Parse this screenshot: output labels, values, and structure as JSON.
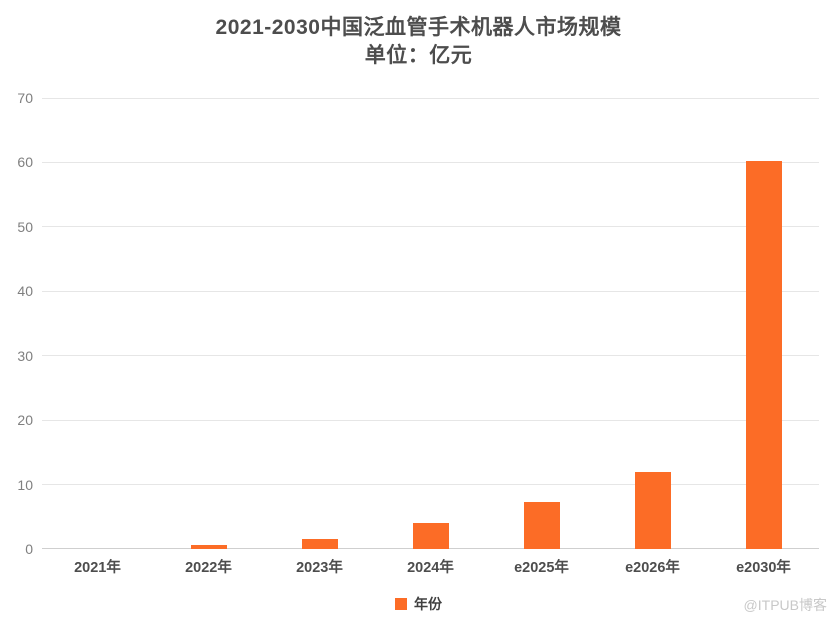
{
  "chart": {
    "watermark": "@ITPUB博客"
  },
  "chart_data": {
    "type": "bar",
    "title": "2021-2030中国泛血管手术机器人市场规模",
    "subtitle": "单位：亿元",
    "unit": "亿元",
    "categories": [
      "2021年",
      "2022年",
      "2023年",
      "2024年",
      "e2025年",
      "e2026年",
      "e2030年"
    ],
    "values": [
      0,
      0.6,
      1.5,
      4,
      7.3,
      11.9,
      60.2
    ],
    "xlabel": "",
    "ylabel": "",
    "ylim": [
      0,
      70
    ],
    "yticks": [
      0,
      10,
      20,
      30,
      40,
      50,
      60,
      70
    ],
    "grid": true,
    "bar_color": "#fc6c26",
    "legend_label": "年份",
    "legend_position": "bottom"
  }
}
